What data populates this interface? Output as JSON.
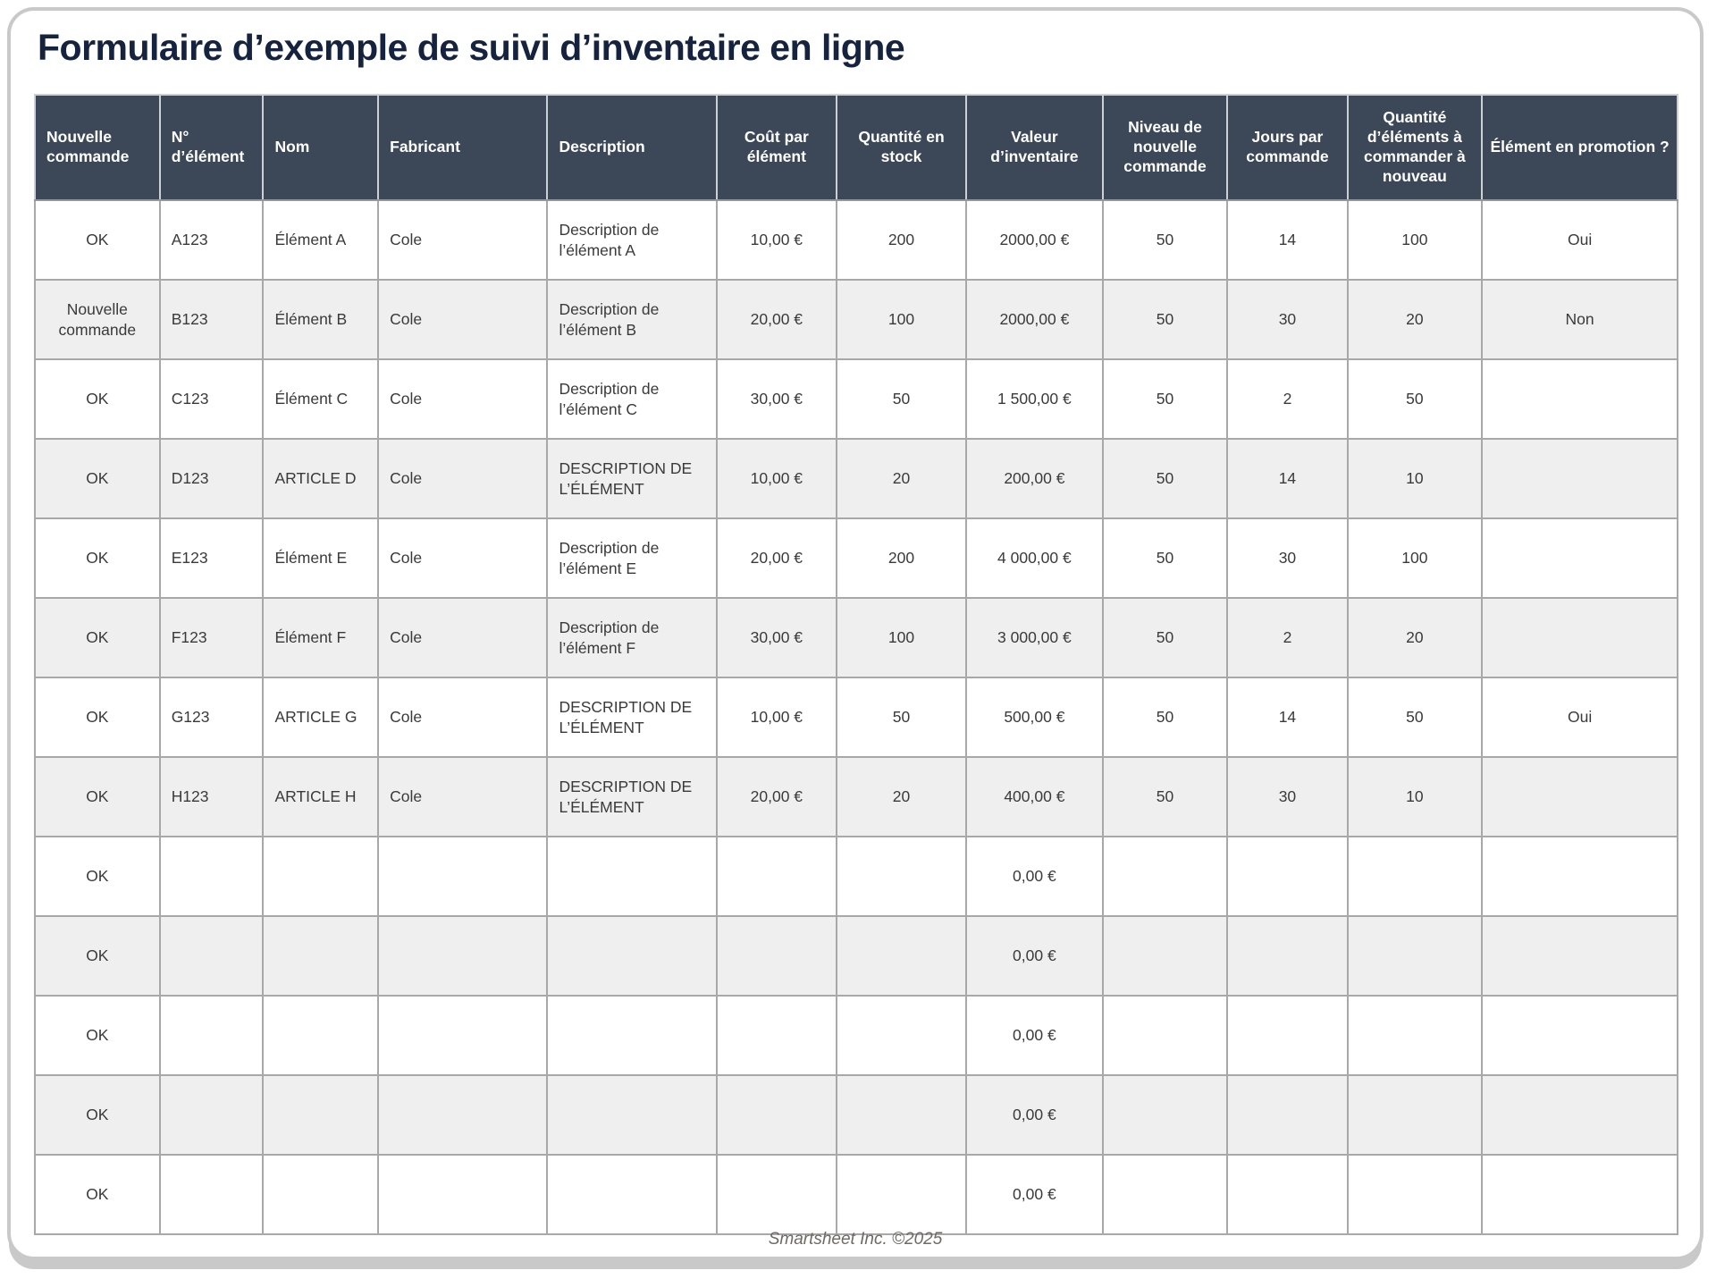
{
  "title": "Formulaire d’exemple de suivi d’inventaire en ligne",
  "footer": "Smartsheet Inc. ©2025",
  "colors": {
    "header_bg": "#3c4858",
    "alt_row_bg": "#efeff0",
    "title_color": "#16233e",
    "grid_line": "#a8a8a8"
  },
  "table": {
    "columns": [
      {
        "label": "Nouvelle commande",
        "header_align": "left",
        "cell_align": "center",
        "width_pct": 7.6
      },
      {
        "label": "N° d’élément",
        "header_align": "left",
        "cell_align": "left",
        "width_pct": 6.3
      },
      {
        "label": "Nom",
        "header_align": "left",
        "cell_align": "left",
        "width_pct": 7.0
      },
      {
        "label": "Fabricant",
        "header_align": "left",
        "cell_align": "left",
        "width_pct": 10.3
      },
      {
        "label": "Description",
        "header_align": "left",
        "cell_align": "left",
        "width_pct": 10.3
      },
      {
        "label": "Coût par élément",
        "header_align": "center",
        "cell_align": "center",
        "width_pct": 7.3
      },
      {
        "label": "Quantité en stock",
        "header_align": "center",
        "cell_align": "center",
        "width_pct": 7.9
      },
      {
        "label": "Valeur d’inventaire",
        "header_align": "center",
        "cell_align": "center",
        "width_pct": 8.3
      },
      {
        "label": "Niveau de nouvelle commande",
        "header_align": "center",
        "cell_align": "center",
        "width_pct": 7.6
      },
      {
        "label": "Jours par commande",
        "header_align": "center",
        "cell_align": "center",
        "width_pct": 7.3
      },
      {
        "label": "Quantité d’éléments à commander à nouveau",
        "header_align": "center",
        "cell_align": "center",
        "width_pct": 8.2
      },
      {
        "label": "Élément en promotion ?",
        "header_align": "center",
        "cell_align": "center",
        "width_pct": 11.9
      }
    ],
    "rows": [
      [
        "OK",
        "A123",
        "Élément A",
        "Cole",
        "Description de l’élément A",
        "10,00 €",
        "200",
        "2000,00 €",
        "50",
        "14",
        "100",
        "Oui"
      ],
      [
        "Nouvelle commande",
        "B123",
        "Élément B",
        "Cole",
        "Description de l’élément B",
        "20,00 €",
        "100",
        "2000,00 €",
        "50",
        "30",
        "20",
        "Non"
      ],
      [
        "OK",
        "C123",
        "Élément C",
        "Cole",
        "Description de l’élément C",
        "30,00 €",
        "50",
        "1 500,00 €",
        "50",
        "2",
        "50",
        ""
      ],
      [
        "OK",
        "D123",
        "ARTICLE D",
        "Cole",
        "DESCRIPTION DE L’ÉLÉMENT",
        "10,00 €",
        "20",
        "200,00 €",
        "50",
        "14",
        "10",
        ""
      ],
      [
        "OK",
        "E123",
        "Élément E",
        "Cole",
        "Description de l’élément E",
        "20,00 €",
        "200",
        "4 000,00 €",
        "50",
        "30",
        "100",
        ""
      ],
      [
        "OK",
        "F123",
        "Élément F",
        "Cole",
        "Description de l’élément F",
        "30,00 €",
        "100",
        "3 000,00 €",
        "50",
        "2",
        "20",
        ""
      ],
      [
        "OK",
        "G123",
        "ARTICLE G",
        "Cole",
        "DESCRIPTION DE L’ÉLÉMENT",
        "10,00 €",
        "50",
        "500,00 €",
        "50",
        "14",
        "50",
        "Oui"
      ],
      [
        "OK",
        "H123",
        "ARTICLE H",
        "Cole",
        "DESCRIPTION DE L’ÉLÉMENT",
        "20,00 €",
        "20",
        "400,00 €",
        "50",
        "30",
        "10",
        ""
      ],
      [
        "OK",
        "",
        "",
        "",
        "",
        "",
        "",
        "0,00 €",
        "",
        "",
        "",
        ""
      ],
      [
        "OK",
        "",
        "",
        "",
        "",
        "",
        "",
        "0,00 €",
        "",
        "",
        "",
        ""
      ],
      [
        "OK",
        "",
        "",
        "",
        "",
        "",
        "",
        "0,00 €",
        "",
        "",
        "",
        ""
      ],
      [
        "OK",
        "",
        "",
        "",
        "",
        "",
        "",
        "0,00 €",
        "",
        "",
        "",
        ""
      ],
      [
        "OK",
        "",
        "",
        "",
        "",
        "",
        "",
        "0,00 €",
        "",
        "",
        "",
        ""
      ]
    ]
  }
}
